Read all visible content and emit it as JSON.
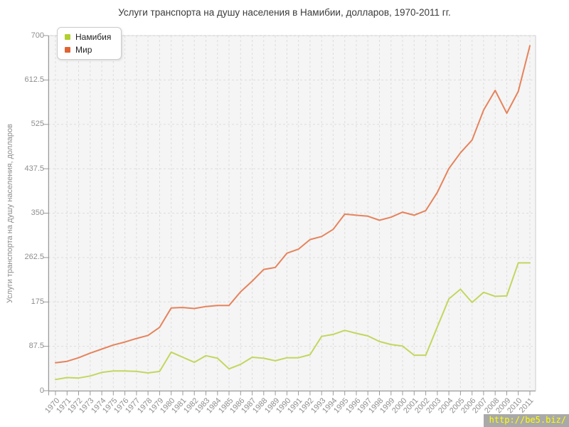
{
  "watermark": "http://be5.biz/",
  "chart_data": {
    "type": "line",
    "title": "Услуги транспорта на душу населения в Намибии, долларов, 1970-2011 гг.",
    "xlabel": "",
    "ylabel": "Услуги транспорта на душу населения, долларов",
    "ylim": [
      0,
      700
    ],
    "yticks": [
      0,
      87.5,
      175,
      262.5,
      350,
      437.5,
      525,
      612.5,
      700
    ],
    "grid": true,
    "grid_style": "dashed",
    "legend_position": "top-left",
    "plot_bg_color": "#f5f5f5",
    "categories": [
      1970,
      1971,
      1972,
      1973,
      1974,
      1975,
      1976,
      1977,
      1978,
      1979,
      1980,
      1981,
      1982,
      1983,
      1984,
      1985,
      1986,
      1987,
      1988,
      1989,
      1990,
      1991,
      1992,
      1993,
      1994,
      1995,
      1996,
      1997,
      1998,
      1999,
      2000,
      2001,
      2002,
      2003,
      2004,
      2005,
      2006,
      2007,
      2008,
      2009,
      2010,
      2011
    ],
    "series": [
      {
        "name": "Намибия",
        "color": "#b1cf2f",
        "line_color": "#c3d65e",
        "values": [
          22,
          26,
          25,
          29,
          36,
          39,
          39,
          38,
          35,
          38,
          76,
          66,
          56,
          69,
          64,
          43,
          52,
          66,
          64,
          59,
          65,
          65,
          71,
          107,
          111,
          119,
          113,
          108,
          97,
          91,
          88,
          70,
          70,
          126,
          181,
          200,
          174,
          194,
          186,
          187,
          252,
          252
        ]
      },
      {
        "name": "Мир",
        "color": "#df6434",
        "line_color": "#e6835c",
        "values": [
          55,
          58,
          65,
          74,
          82,
          90,
          96,
          103,
          109,
          125,
          163,
          164,
          162,
          166,
          168,
          168,
          195,
          216,
          239,
          243,
          271,
          279,
          298,
          304,
          318,
          348,
          346,
          344,
          336,
          342,
          352,
          346,
          355,
          391,
          438,
          469,
          494,
          553,
          592,
          547,
          590,
          680
        ]
      }
    ]
  }
}
